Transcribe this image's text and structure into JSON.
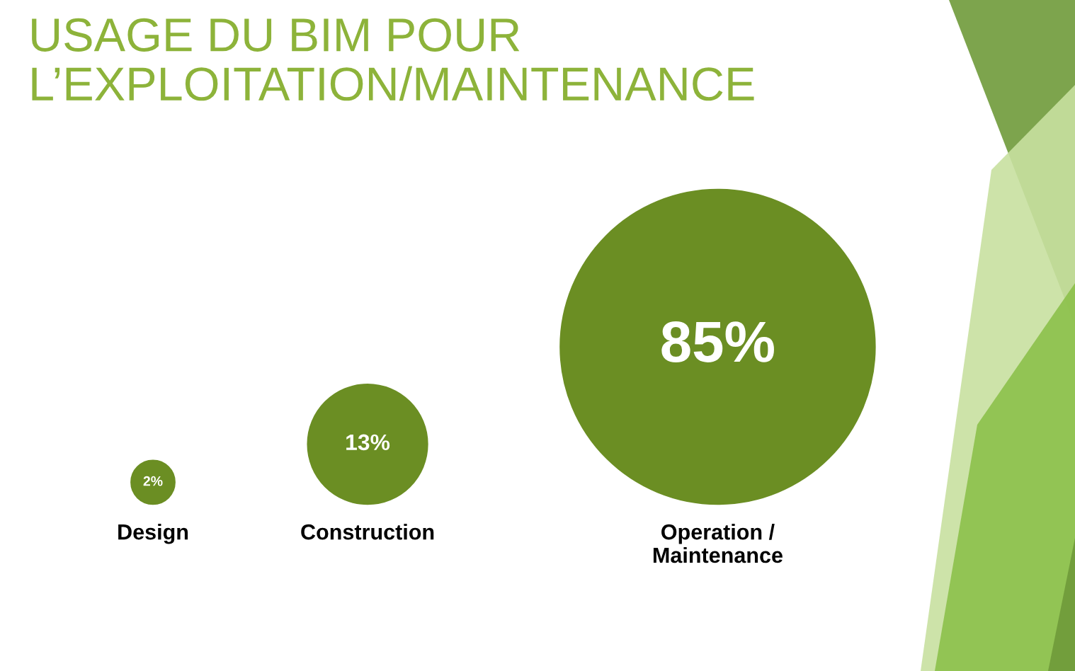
{
  "chart_data": {
    "type": "other",
    "title": "USAGE DU BIM POUR\nL’EXPLOITATION/MAINTENANCE",
    "categories": [
      "Design",
      "Construction",
      "Operation /\nMaintenance"
    ],
    "values": [
      2,
      13,
      85
    ],
    "value_labels": [
      "2%",
      "13%",
      "85%"
    ],
    "color": "#6b8e23"
  }
}
